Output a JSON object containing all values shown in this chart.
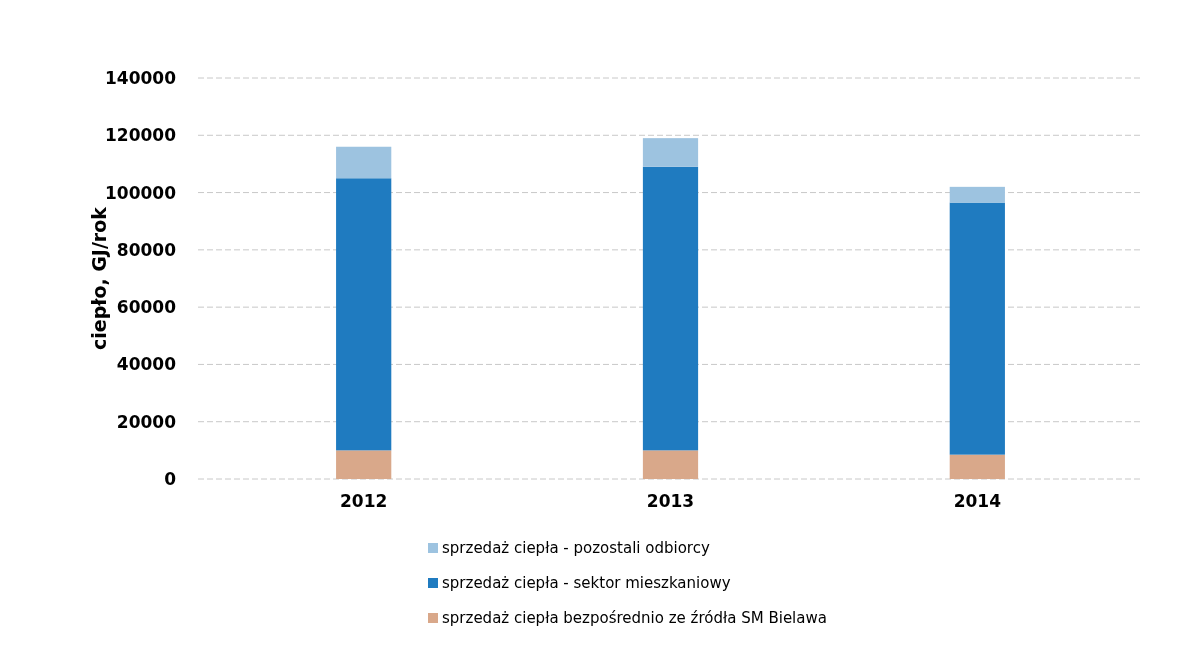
{
  "chart_data": {
    "type": "bar",
    "stacked": true,
    "ylabel": "ciepło, GJ/rok",
    "categories": [
      "2012",
      "2013",
      "2014"
    ],
    "series": [
      {
        "name": "sprzedaż ciepła bezpośrednio ze źródła SM Bielawa",
        "color": "#d9a88a",
        "values": [
          10000,
          10000,
          8500
        ]
      },
      {
        "name": "sprzedaż ciepła - sektor mieszkaniowy",
        "color": "#1f7bc0",
        "values": [
          95000,
          99000,
          88000
        ]
      },
      {
        "name": "sprzedaż ciepła - pozostali odbiorcy",
        "color": "#9dc3e0",
        "values": [
          11000,
          10000,
          5500
        ]
      }
    ],
    "ylim": [
      0,
      140000
    ],
    "yticks": [
      0,
      20000,
      40000,
      60000,
      80000,
      100000,
      120000,
      140000
    ],
    "grid": "y",
    "legend": "bottom"
  }
}
